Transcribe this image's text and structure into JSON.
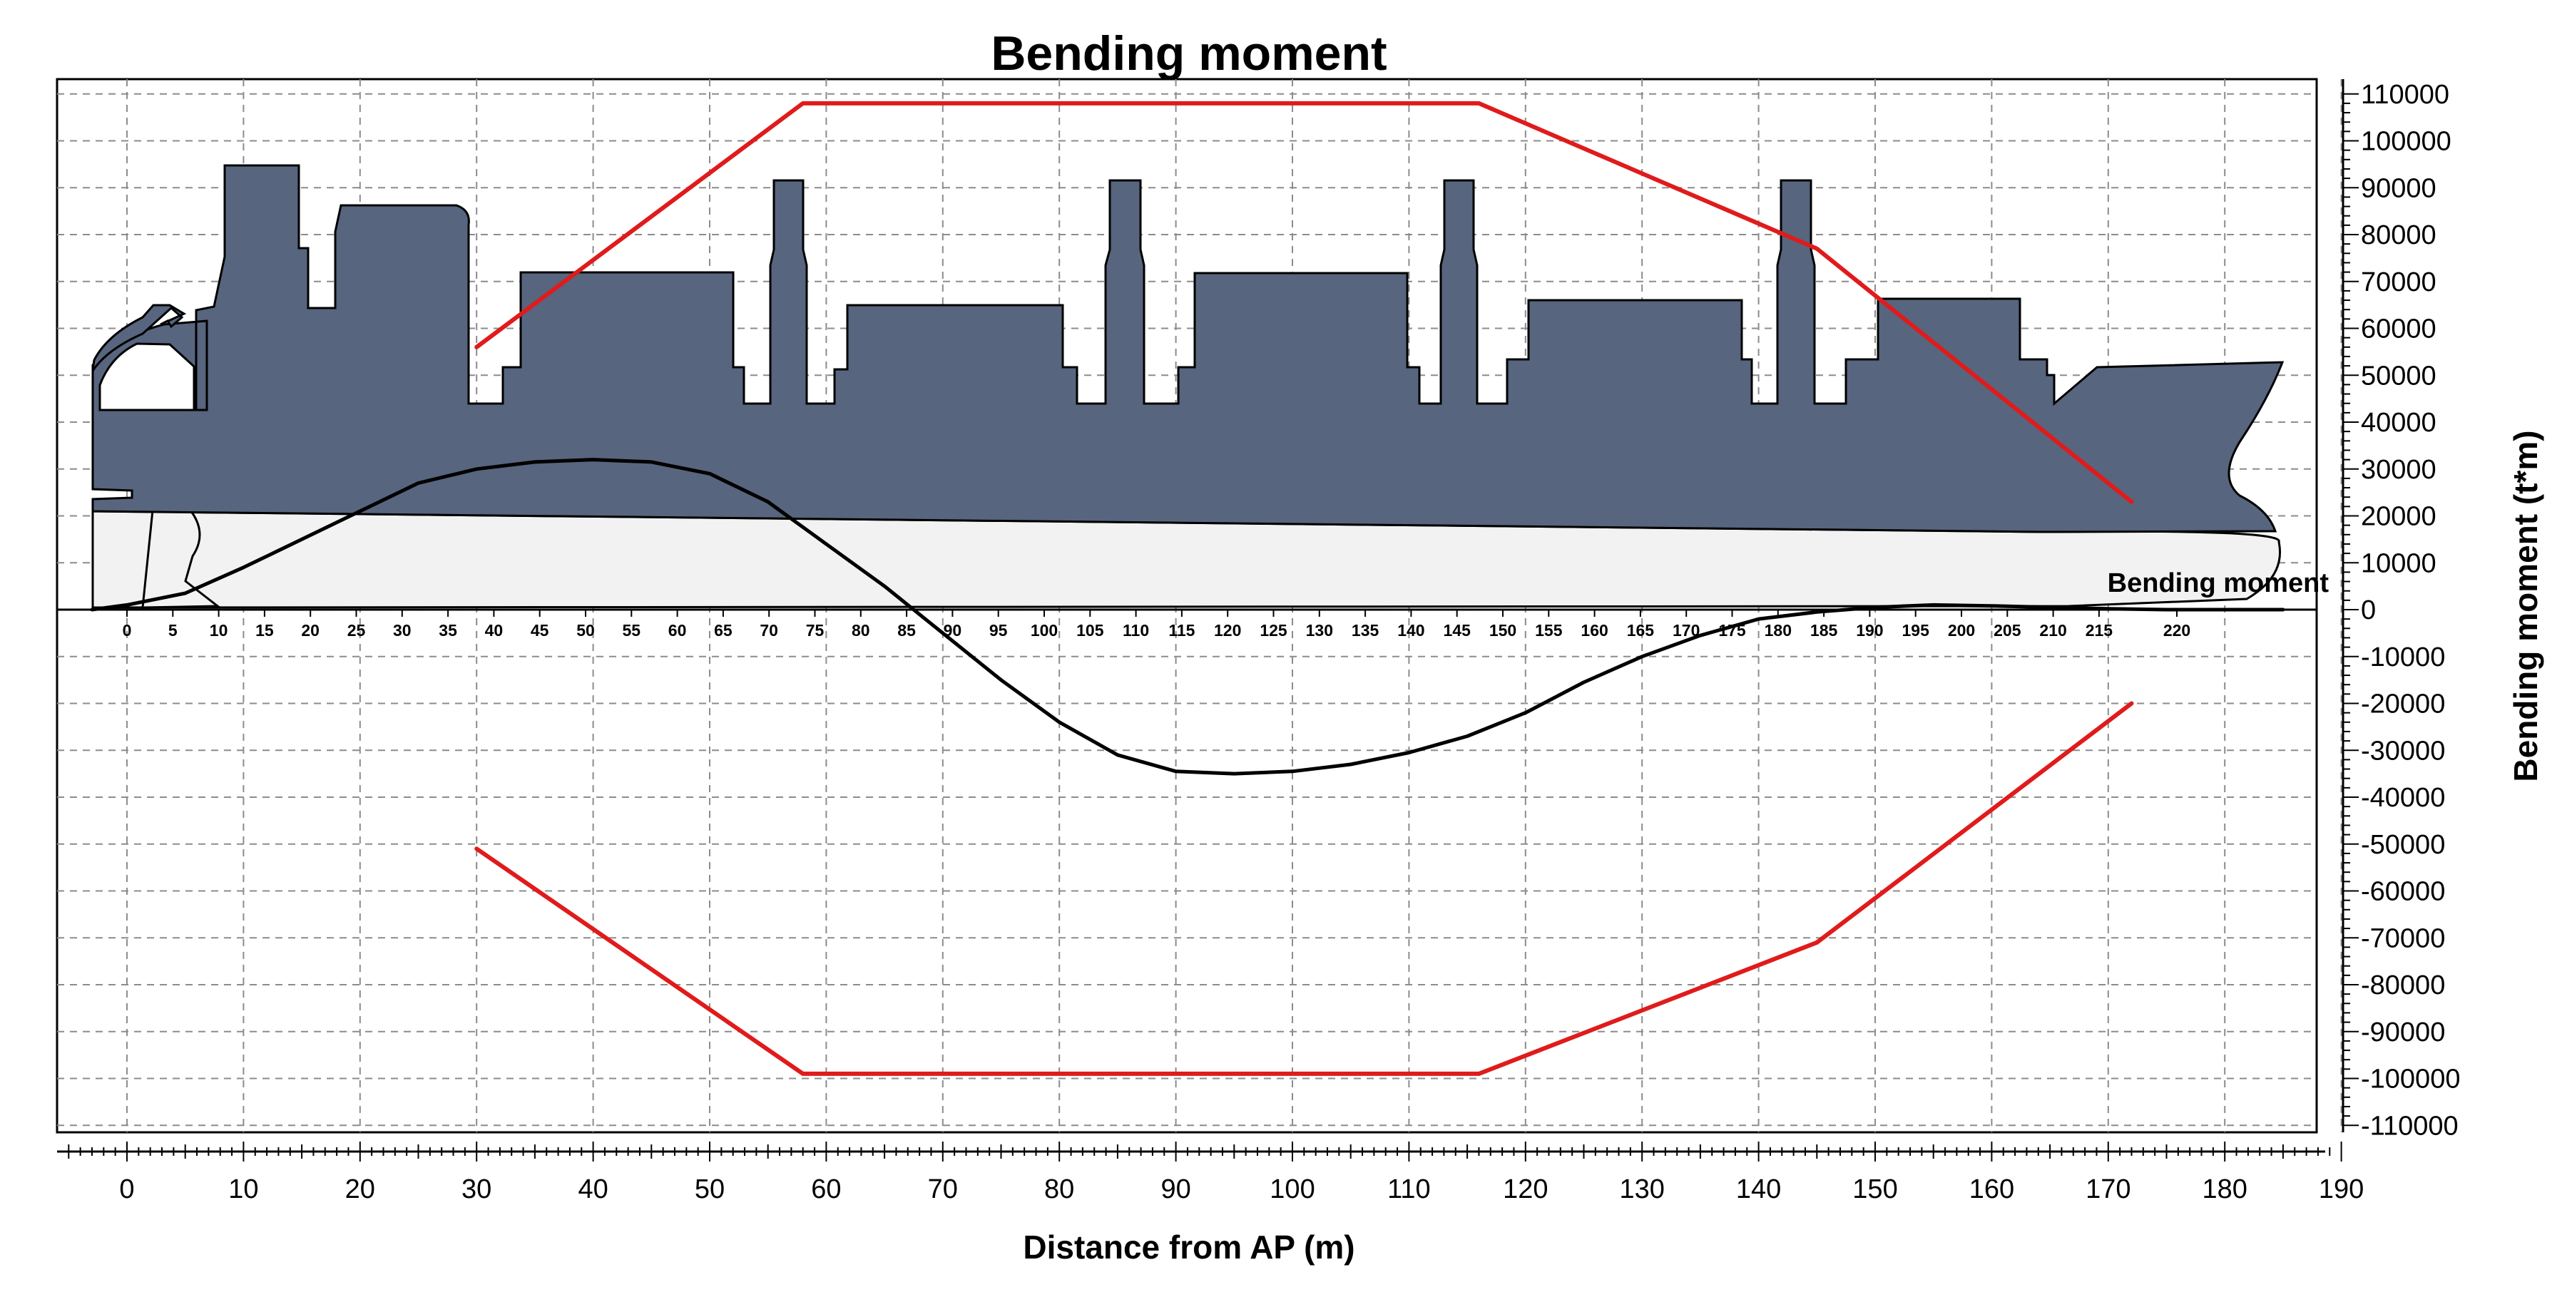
{
  "chart_data": {
    "type": "line",
    "title": "Bending moment",
    "xlabel": "Distance from AP (m)",
    "ylabel": "Bending moment (t*m)",
    "xlim": [
      -5,
      190
    ],
    "ylim": [
      -110000,
      110000
    ],
    "x_ticks": [
      0,
      10,
      20,
      30,
      40,
      50,
      60,
      70,
      80,
      90,
      100,
      110,
      120,
      130,
      140,
      150,
      160,
      170,
      180,
      190
    ],
    "y_ticks": [
      110000,
      100000,
      90000,
      80000,
      70000,
      60000,
      50000,
      40000,
      30000,
      20000,
      10000,
      0,
      -10000,
      -20000,
      -30000,
      -40000,
      -50000,
      -60000,
      -70000,
      -80000,
      -90000,
      -100000,
      -110000
    ],
    "frame_ticks": [
      "0",
      "5",
      "10",
      "15",
      "20",
      "25",
      "30",
      "35",
      "40",
      "45",
      "50",
      "55",
      "60",
      "65",
      "70",
      "75",
      "80",
      "85",
      "90",
      "95",
      "100",
      "105",
      "110",
      "115",
      "120",
      "125",
      "130",
      "135",
      "140",
      "145",
      "150",
      "155",
      "160",
      "165",
      "170",
      "175",
      "180",
      "185",
      "190",
      "195",
      "200",
      "205",
      "210",
      "215",
      "220"
    ],
    "grid": true,
    "series": [
      {
        "name": "Bending moment",
        "color": "#000000",
        "x": [
          -3,
          0,
          5,
          10,
          15,
          20,
          25,
          30,
          35,
          40,
          45,
          50,
          55,
          60,
          65,
          70,
          75,
          80,
          85,
          90,
          95,
          100,
          105,
          110,
          115,
          120,
          125,
          130,
          135,
          140,
          145,
          150,
          155,
          160,
          165,
          170,
          175,
          180,
          185
        ],
        "y": [
          0,
          1000,
          3500,
          9000,
          15000,
          21000,
          27000,
          30000,
          31500,
          32000,
          31500,
          29000,
          23000,
          14000,
          5000,
          -5000,
          -15000,
          -24000,
          -31000,
          -34500,
          -35000,
          -34500,
          -33000,
          -30500,
          -27000,
          -22000,
          -15500,
          -10000,
          -5500,
          -2000,
          -500,
          500,
          1000,
          800,
          500,
          200,
          0,
          0,
          0
        ]
      },
      {
        "name": "",
        "color": "#e01b1b",
        "x": [
          30,
          58,
          116,
          145,
          172
        ],
        "y": [
          56000,
          108000,
          108000,
          77000,
          23000
        ]
      },
      {
        "name": "",
        "color": "#e01b1b",
        "x": [
          30,
          58,
          116,
          145,
          172
        ],
        "y": [
          -51000,
          -99000,
          -99000,
          -71000,
          -20000
        ]
      }
    ]
  }
}
